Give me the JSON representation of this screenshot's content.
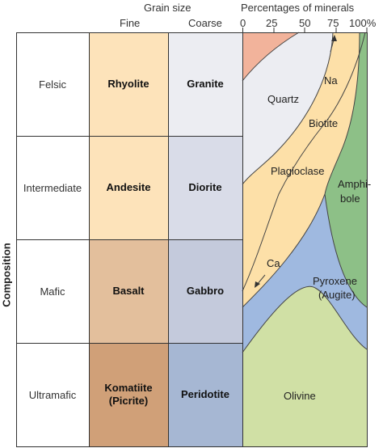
{
  "header": {
    "grain_size": "Grain size",
    "fine": "Fine",
    "coarse": "Coarse",
    "percentages": "Percentages of minerals",
    "ticks": [
      "0",
      "25",
      "50",
      "75",
      "100%"
    ]
  },
  "axis_title": "Composition",
  "rows": [
    {
      "composition": "Felsic",
      "fine": "Rhyolite",
      "coarse": "Granite"
    },
    {
      "composition": "Intermediate",
      "fine": "Andesite",
      "coarse": "Diorite"
    },
    {
      "composition": "Mafic",
      "fine": "Basalt",
      "coarse": "Gabbro"
    },
    {
      "composition": "Ultramafic",
      "fine": "Komatiite (Picrite)",
      "coarse": "Peridotite"
    }
  ],
  "minerals": {
    "quartz": "Quartz",
    "na": "Na",
    "biotite": "Biotite",
    "plagioclase": "Plagioclase",
    "amphibole_1": "Amphi-",
    "amphibole_2": "bole",
    "ca": "Ca",
    "pyroxene_1": "Pyroxene",
    "pyroxene_2": "(Augite)",
    "olivine": "Olivine"
  },
  "colors": {
    "fine": [
      "#fde3ba",
      "#fde3ba",
      "#e3bf9c",
      "#d0a078"
    ],
    "coarse": [
      "#ecedf2",
      "#d9dce8",
      "#c4cadc",
      "#a6b7d3"
    ],
    "orthoclase": "#f2b39b",
    "quartz": "#ecedf2",
    "plagioclase": "#fde0a8",
    "biotite": "#fde0a8",
    "amphibole": "#8dc087",
    "pyroxene": "#9fb9e0",
    "olivine": "#d0e0a5"
  }
}
